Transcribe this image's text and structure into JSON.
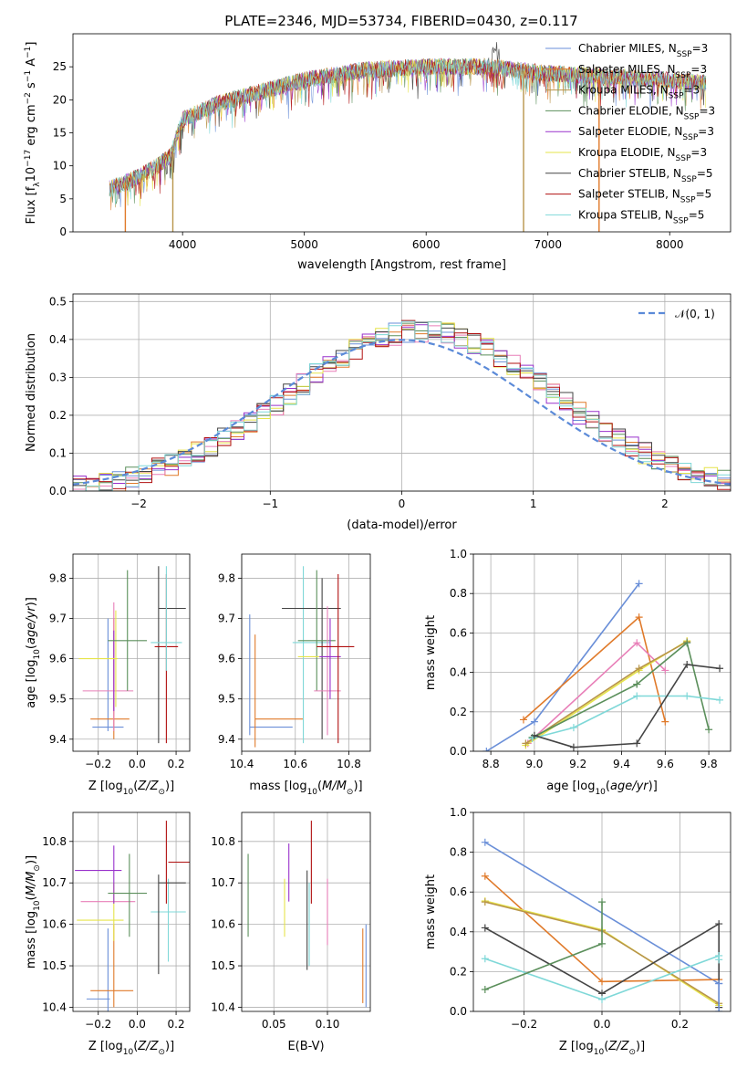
{
  "title": "PLATE=2346, MJD=53734, FIBERID=0430, z=0.117",
  "colors": {
    "Chabrier MILES": "#6a8fd8",
    "Salpeter MILES": "#e07a2a",
    "Kroupa MILES": "#b8954a",
    "Chabrier ELODIE": "#5b8f5b",
    "Salpeter ELODIE": "#9932cc",
    "Kroupa ELODIE": "#e6e44a",
    "Chabrier STELIB": "#444444",
    "Salpeter STELIB": "#b01010",
    "Kroupa STELIB": "#7fd8d8",
    "pink": "#e87fb8",
    "gaussian": "#5b8ad8"
  },
  "chart_data": [
    {
      "id": "spectrum",
      "type": "line",
      "xlabel": "wavelength [Angstrom, rest frame]",
      "ylabel": "Flux [f_λ10^-17 erg cm^-2 s^-1 A^-1]",
      "xlim": [
        3100,
        8500
      ],
      "ylim": [
        0,
        30
      ],
      "xticks": [
        4000,
        5000,
        6000,
        7000,
        8000
      ],
      "yticks": [
        0,
        5,
        10,
        15,
        20,
        25
      ],
      "legend_position": "top-right",
      "legend": [
        {
          "name": "Chabrier MILES",
          "nssp": "3"
        },
        {
          "name": "Salpeter MILES",
          "nssp": "3"
        },
        {
          "name": "Kroupa MILES",
          "nssp": "3"
        },
        {
          "name": "Chabrier ELODIE",
          "nssp": "3"
        },
        {
          "name": "Salpeter ELODIE",
          "nssp": "3"
        },
        {
          "name": "Kroupa ELODIE",
          "nssp": "3"
        },
        {
          "name": "Chabrier STELIB",
          "nssp": "5"
        },
        {
          "name": "Salpeter STELIB",
          "nssp": "5"
        },
        {
          "name": "Kroupa STELIB",
          "nssp": "5"
        }
      ],
      "continuum": {
        "x": [
          3400,
          3600,
          3800,
          3900,
          4000,
          4300,
          4600,
          5000,
          5500,
          6000,
          6500,
          7000,
          7500,
          8000,
          8300
        ],
        "y": [
          6.5,
          8.0,
          10.0,
          11.5,
          17.0,
          19.5,
          21.0,
          23.0,
          24.5,
          25.0,
          25.0,
          24.0,
          23.5,
          23.0,
          22.5
        ]
      }
    },
    {
      "id": "residuals",
      "type": "histogram",
      "xlabel": "(data-model)/error",
      "ylabel": "Normed distribution",
      "xlim": [
        -2.5,
        2.5
      ],
      "ylim": [
        0,
        0.52
      ],
      "xticks": [
        -2,
        -1,
        0,
        1,
        2
      ],
      "yticks": [
        0.0,
        0.1,
        0.2,
        0.3,
        0.4,
        0.5
      ],
      "legend": [
        "𝒩(0, 1)"
      ],
      "legend_position": "top-right",
      "bin_width": 0.1,
      "gaussian": {
        "mean": 0,
        "sigma": 1
      }
    },
    {
      "id": "age_vs_Z",
      "type": "scatter",
      "xlabel": "Z [log10(Z/Z⊙)]",
      "ylabel": "age [log10(age/yr)]",
      "xlim": [
        -0.33,
        0.27
      ],
      "ylim": [
        9.37,
        9.86
      ],
      "xticks": [
        -0.2,
        0.0,
        0.2
      ],
      "ylim_ticks": [
        9.4,
        9.5,
        9.6,
        9.7,
        9.8
      ],
      "points": [
        {
          "c": "Chabrier MILES",
          "x": -0.15,
          "xe": 0.08,
          "y": 9.43,
          "ye": 0.0
        },
        {
          "c": "Chabrier MILES",
          "x": -0.15,
          "xe": 0.0,
          "y": 9.56,
          "ye": 0.14
        },
        {
          "c": "Salpeter MILES",
          "x": -0.14,
          "xe": 0.1,
          "y": 9.45,
          "ye": 0.0
        },
        {
          "c": "Salpeter MILES",
          "x": -0.12,
          "xe": 0.0,
          "y": 9.55,
          "ye": 0.15
        },
        {
          "c": "pink",
          "x": -0.15,
          "xe": 0.13,
          "y": 9.52,
          "ye": 0.0
        },
        {
          "c": "pink",
          "x": -0.12,
          "xe": 0.0,
          "y": 9.58,
          "ye": 0.16
        },
        {
          "c": "Salpeter ELODIE",
          "x": -0.12,
          "xe": 0.0,
          "y": 9.57,
          "ye": 0.1
        },
        {
          "c": "Kroupa ELODIE",
          "x": -0.2,
          "xe": 0.1,
          "y": 9.6,
          "ye": 0.0
        },
        {
          "c": "Kroupa ELODIE",
          "x": -0.11,
          "xe": 0.0,
          "y": 9.6,
          "ye": 0.12
        },
        {
          "c": "Chabrier ELODIE",
          "x": -0.05,
          "xe": 0.1,
          "y": 9.645,
          "ye": 0.0
        },
        {
          "c": "Chabrier ELODIE",
          "x": -0.05,
          "xe": 0.0,
          "y": 9.67,
          "ye": 0.15
        },
        {
          "c": "Chabrier STELIB",
          "x": 0.11,
          "xe": 0.0,
          "y": 9.61,
          "ye": 0.22
        },
        {
          "c": "Chabrier STELIB",
          "x": 0.18,
          "xe": 0.07,
          "y": 9.725,
          "ye": 0.0
        },
        {
          "c": "Salpeter STELIB",
          "x": 0.15,
          "xe": 0.06,
          "y": 9.63,
          "ye": 0.0
        },
        {
          "c": "Salpeter STELIB",
          "x": 0.15,
          "xe": 0.0,
          "y": 9.6,
          "ye": 0.21
        },
        {
          "c": "Kroupa STELIB",
          "x": 0.15,
          "xe": 0.08,
          "y": 9.64,
          "ye": 0.0
        },
        {
          "c": "Kroupa STELIB",
          "x": 0.15,
          "xe": 0.0,
          "y": 9.7,
          "ye": 0.13
        }
      ]
    },
    {
      "id": "age_vs_mass",
      "type": "scatter",
      "xlabel": "mass [log10(M/M⊙)]",
      "ylabel": "",
      "xlim": [
        10.4,
        10.88
      ],
      "ylim": [
        9.37,
        9.86
      ],
      "xticks": [
        10.4,
        10.6,
        10.8
      ],
      "ylim_ticks": [
        9.4,
        9.5,
        9.6,
        9.7,
        9.8
      ],
      "points": [
        {
          "c": "Chabrier MILES",
          "x": 10.43,
          "xe": 0.0,
          "y": 9.56,
          "ye": 0.15
        },
        {
          "c": "Chabrier MILES",
          "x": 10.51,
          "xe": 0.08,
          "y": 9.43,
          "ye": 0.0
        },
        {
          "c": "Salpeter MILES",
          "x": 10.45,
          "xe": 0.0,
          "y": 9.52,
          "ye": 0.14
        },
        {
          "c": "Salpeter MILES",
          "x": 10.54,
          "xe": 0.09,
          "y": 9.45,
          "ye": 0.0
        },
        {
          "c": "Kroupa STELIB",
          "x": 10.63,
          "xe": 0.0,
          "y": 9.61,
          "ye": 0.22
        },
        {
          "c": "Kroupa STELIB",
          "x": 10.66,
          "xe": 0.07,
          "y": 9.64,
          "ye": 0.0
        },
        {
          "c": "Chabrier STELIB",
          "x": 10.66,
          "xe": 0.11,
          "y": 9.725,
          "ye": 0.0
        },
        {
          "c": "Chabrier STELIB",
          "x": 10.7,
          "xe": 0.0,
          "y": 9.6,
          "ye": 0.2
        },
        {
          "c": "Chabrier ELODIE",
          "x": 10.68,
          "xe": 0.07,
          "y": 9.645,
          "ye": 0.0
        },
        {
          "c": "Chabrier ELODIE",
          "x": 10.68,
          "xe": 0.0,
          "y": 9.67,
          "ye": 0.15
        },
        {
          "c": "Kroupa ELODIE",
          "x": 10.65,
          "xe": 0.04,
          "y": 9.605,
          "ye": 0.0
        },
        {
          "c": "pink",
          "x": 10.72,
          "xe": 0.05,
          "y": 9.52,
          "ye": 0.0
        },
        {
          "c": "pink",
          "x": 10.72,
          "xe": 0.0,
          "y": 9.57,
          "ye": 0.16
        },
        {
          "c": "Salpeter ELODIE",
          "x": 10.73,
          "xe": 0.04,
          "y": 9.605,
          "ye": 0.0
        },
        {
          "c": "Salpeter ELODIE",
          "x": 10.73,
          "xe": 0.0,
          "y": 9.6,
          "ye": 0.1
        },
        {
          "c": "Salpeter STELIB",
          "x": 10.75,
          "xe": 0.07,
          "y": 9.63,
          "ye": 0.0
        },
        {
          "c": "Salpeter STELIB",
          "x": 10.76,
          "xe": 0.0,
          "y": 9.6,
          "ye": 0.21
        }
      ]
    },
    {
      "id": "weight_vs_age",
      "type": "line",
      "xlabel": "age [log10(age/yr)]",
      "ylabel": "mass weight",
      "xlim": [
        8.72,
        9.9
      ],
      "ylim": [
        0,
        1
      ],
      "xticks": [
        8.8,
        9.0,
        9.2,
        9.4,
        9.6,
        9.8
      ],
      "yticks": [
        0.0,
        0.2,
        0.4,
        0.6,
        0.8,
        1.0
      ],
      "series": [
        {
          "c": "Chabrier MILES",
          "x": [
            8.78,
            9.0,
            9.48
          ],
          "y": [
            0.0,
            0.15,
            0.85
          ]
        },
        {
          "c": "Salpeter MILES",
          "x": [
            8.95,
            9.48,
            9.6
          ],
          "y": [
            0.16,
            0.68,
            0.15
          ]
        },
        {
          "c": "pink",
          "x": [
            8.97,
            9.47,
            9.6
          ],
          "y": [
            0.04,
            0.55,
            0.41
          ]
        },
        {
          "c": "Kroupa ELODIE",
          "x": [
            8.96,
            9.48,
            9.7
          ],
          "y": [
            0.03,
            0.41,
            0.56
          ]
        },
        {
          "c": "Kroupa MILES",
          "x": [
            8.96,
            9.48,
            9.7
          ],
          "y": [
            0.04,
            0.42,
            0.555
          ]
        },
        {
          "c": "Chabrier ELODIE",
          "x": [
            9.47,
            9.7,
            9.8
          ],
          "y": [
            0.34,
            0.55,
            0.11
          ]
        },
        {
          "c": "Chabrier ELODIE",
          "x": [
            8.99,
            9.47
          ],
          "y": [
            0.07,
            0.34
          ]
        },
        {
          "c": "Kroupa STELIB",
          "x": [
            8.99,
            9.18,
            9.47,
            9.7,
            9.85
          ],
          "y": [
            0.065,
            0.12,
            0.28,
            0.28,
            0.26
          ]
        },
        {
          "c": "Chabrier STELIB",
          "x": [
            9.0,
            9.18,
            9.47,
            9.7,
            9.85
          ],
          "y": [
            0.08,
            0.02,
            0.04,
            0.44,
            0.42
          ]
        }
      ]
    },
    {
      "id": "mass_vs_Z",
      "type": "scatter",
      "xlabel": "Z [log10(Z/Z⊙)]",
      "ylabel": "mass [log10(M/M⊙)]",
      "xlim": [
        -0.33,
        0.27
      ],
      "ylim": [
        10.39,
        10.87
      ],
      "xticks": [
        -0.2,
        0.0,
        0.2
      ],
      "ylim_ticks": [
        10.4,
        10.5,
        10.6,
        10.7,
        10.8
      ],
      "points": [
        {
          "c": "Chabrier MILES",
          "x": -0.2,
          "xe": 0.06,
          "y": 10.42,
          "ye": 0.0
        },
        {
          "c": "Chabrier MILES",
          "x": -0.15,
          "xe": 0.0,
          "y": 10.49,
          "ye": 0.1
        },
        {
          "c": "Salpeter MILES",
          "x": -0.13,
          "xe": 0.11,
          "y": 10.44,
          "ye": 0.0
        },
        {
          "c": "Salpeter MILES",
          "x": -0.12,
          "xe": 0.0,
          "y": 10.5,
          "ye": 0.1
        },
        {
          "c": "Kroupa ELODIE",
          "x": -0.19,
          "xe": 0.12,
          "y": 10.61,
          "ye": 0.0
        },
        {
          "c": "Kroupa ELODIE",
          "x": -0.12,
          "xe": 0.0,
          "y": 10.63,
          "ye": 0.07
        },
        {
          "c": "pink",
          "x": -0.15,
          "xe": 0.14,
          "y": 10.655,
          "ye": 0.0
        },
        {
          "c": "Salpeter ELODIE",
          "x": -0.2,
          "xe": 0.12,
          "y": 10.73,
          "ye": 0.0
        },
        {
          "c": "Salpeter ELODIE",
          "x": -0.12,
          "xe": 0.0,
          "y": 10.72,
          "ye": 0.07
        },
        {
          "c": "Chabrier ELODIE",
          "x": -0.05,
          "xe": 0.1,
          "y": 10.675,
          "ye": 0.0
        },
        {
          "c": "Chabrier ELODIE",
          "x": -0.04,
          "xe": 0.0,
          "y": 10.67,
          "ye": 0.1
        },
        {
          "c": "Kroupa STELIB",
          "x": 0.16,
          "xe": 0.09,
          "y": 10.63,
          "ye": 0.0
        },
        {
          "c": "Kroupa STELIB",
          "x": 0.16,
          "xe": 0.0,
          "y": 10.61,
          "ye": 0.1
        },
        {
          "c": "Chabrier STELIB",
          "x": 0.18,
          "xe": 0.07,
          "y": 10.7,
          "ye": 0.0
        },
        {
          "c": "Chabrier STELIB",
          "x": 0.11,
          "xe": 0.0,
          "y": 10.6,
          "ye": 0.12
        },
        {
          "c": "Salpeter STELIB",
          "x": 0.22,
          "xe": 0.06,
          "y": 10.75,
          "ye": 0.0
        },
        {
          "c": "Salpeter STELIB",
          "x": 0.15,
          "xe": 0.0,
          "y": 10.75,
          "ye": 0.1
        }
      ]
    },
    {
      "id": "mass_vs_EBV",
      "type": "scatter",
      "xlabel": "E(B-V)",
      "ylabel": "",
      "xlim": [
        0.02,
        0.14
      ],
      "ylim": [
        10.39,
        10.87
      ],
      "xticks": [
        0.05,
        0.1
      ],
      "ylim_ticks": [
        10.4,
        10.5,
        10.6,
        10.7,
        10.8
      ],
      "points": [
        {
          "c": "Chabrier ELODIE",
          "x": 0.026,
          "xe": 0.0,
          "y": 10.67,
          "ye": 0.1
        },
        {
          "c": "Kroupa ELODIE",
          "x": 0.06,
          "xe": 0.0,
          "y": 10.64,
          "ye": 0.07
        },
        {
          "c": "Salpeter ELODIE",
          "x": 0.064,
          "xe": 0.0,
          "y": 10.725,
          "ye": 0.07
        },
        {
          "c": "Chabrier STELIB",
          "x": 0.081,
          "xe": 0.0,
          "y": 10.61,
          "ye": 0.12
        },
        {
          "c": "Kroupa STELIB",
          "x": 0.083,
          "xe": 0.0,
          "y": 10.6,
          "ye": 0.1
        },
        {
          "c": "Salpeter STELIB",
          "x": 0.085,
          "xe": 0.0,
          "y": 10.75,
          "ye": 0.1
        },
        {
          "c": "pink",
          "x": 0.1,
          "xe": 0.0,
          "y": 10.63,
          "ye": 0.08
        },
        {
          "c": "Salpeter MILES",
          "x": 0.133,
          "xe": 0.0,
          "y": 10.5,
          "ye": 0.09
        },
        {
          "c": "Chabrier MILES",
          "x": 0.136,
          "xe": 0.0,
          "y": 10.5,
          "ye": 0.1
        }
      ]
    },
    {
      "id": "weight_vs_Z",
      "type": "line",
      "xlabel": "Z [log10(Z/Z⊙)]",
      "ylabel": "mass weight",
      "xlim": [
        -0.33,
        0.33
      ],
      "ylim": [
        0,
        1
      ],
      "xticks": [
        -0.2,
        0.0,
        0.2
      ],
      "yticks": [
        0.0,
        0.2,
        0.4,
        0.6,
        0.8,
        1.0
      ],
      "series": [
        {
          "c": "Chabrier MILES",
          "x": [
            -0.3,
            0.3
          ],
          "y": [
            0.85,
            0.14
          ]
        },
        {
          "c": "Salpeter MILES",
          "x": [
            -0.3,
            0.0,
            0.3
          ],
          "y": [
            0.68,
            0.15,
            0.16
          ]
        },
        {
          "c": "Kroupa ELODIE",
          "x": [
            -0.3,
            0.0,
            0.3
          ],
          "y": [
            0.555,
            0.41,
            0.03
          ]
        },
        {
          "c": "Kroupa MILES",
          "x": [
            -0.3,
            0.0,
            0.3
          ],
          "y": [
            0.55,
            0.405,
            0.04
          ]
        },
        {
          "c": "Chabrier STELIB",
          "x": [
            -0.3,
            0.0,
            0.3,
            0.3
          ],
          "y": [
            0.42,
            0.09,
            0.44,
            0.02
          ]
        },
        {
          "c": "Kroupa STELIB",
          "x": [
            -0.3,
            0.0,
            0.3,
            0.3
          ],
          "y": [
            0.265,
            0.06,
            0.28,
            0.26
          ]
        },
        {
          "c": "Chabrier ELODIE",
          "x": [
            -0.3,
            0.0,
            0.0
          ],
          "y": [
            0.11,
            0.34,
            0.55
          ]
        },
        {
          "c": "Chabrier MILES",
          "x": [
            0.3,
            0.3
          ],
          "y": [
            0.0,
            0.14
          ]
        }
      ]
    }
  ]
}
